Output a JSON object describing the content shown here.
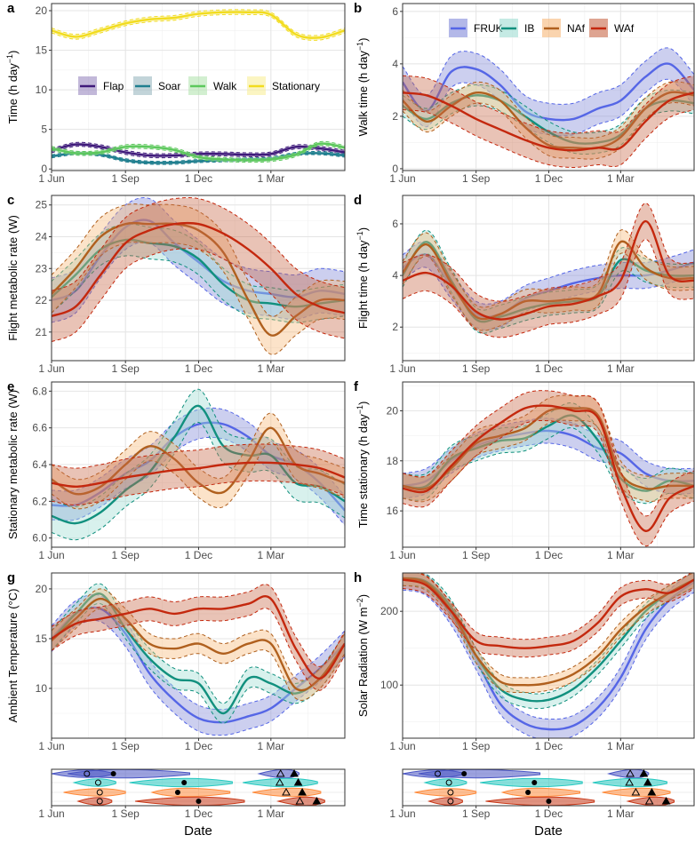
{
  "x_ticks": {
    "labels": [
      "1 Jun",
      "1 Sep",
      "1 Dec",
      "1 Mar"
    ],
    "days": [
      0,
      92,
      183,
      273
    ]
  },
  "x_axis_title": "Date",
  "population_legend": [
    {
      "name": "FRUK",
      "line": "#5566e6",
      "band": "#8088d8"
    },
    {
      "name": "IB",
      "line": "#11907e",
      "band": "#9edcd2"
    },
    {
      "name": "NAf",
      "line": "#b0601e",
      "band": "#f7b878"
    },
    {
      "name": "WAf",
      "line": "#c4280e",
      "band": "#c86848"
    }
  ],
  "chart_data": [
    {
      "panel": "a",
      "type": "line",
      "ylabel": "Time (h day",
      "ylabel_sup": "−1",
      "ylabel_end": ")",
      "ylim": [
        -0.2,
        20.9
      ],
      "yticks": [
        0,
        5,
        10,
        15,
        20
      ],
      "legend": "center",
      "x_days": [
        0,
        30,
        61,
        92,
        122,
        153,
        183,
        214,
        245,
        273,
        304,
        334,
        365
      ],
      "series": [
        {
          "name": "Flap",
          "line": "#3f1a7a",
          "band": "#9a88c0",
          "halfwidth": 0.25,
          "values": [
            2.3,
            3.1,
            2.8,
            2.1,
            1.7,
            1.7,
            1.9,
            1.9,
            1.8,
            1.9,
            2.8,
            2.6,
            2.1
          ]
        },
        {
          "name": "Soar",
          "line": "#1f7f8f",
          "band": "#9ab8c0",
          "halfwidth": 0.2,
          "values": [
            1.6,
            2.0,
            1.8,
            1.1,
            0.8,
            0.8,
            1.0,
            1.1,
            1.2,
            1.3,
            1.9,
            2.0,
            1.7
          ]
        },
        {
          "name": "Walk",
          "line": "#5cc85c",
          "band": "#b4e4b0",
          "halfwidth": 0.25,
          "values": [
            2.6,
            2.0,
            2.1,
            2.8,
            2.8,
            2.4,
            1.5,
            1.2,
            1.1,
            1.2,
            1.8,
            3.2,
            2.7
          ]
        },
        {
          "name": "Stationary",
          "line": "#f2dc1e",
          "band": "#f8ee9a",
          "halfwidth": 0.3,
          "values": [
            17.5,
            16.7,
            17.5,
            18.4,
            18.9,
            19.1,
            19.6,
            19.8,
            19.8,
            19.5,
            17.0,
            16.6,
            17.5
          ]
        }
      ]
    },
    {
      "panel": "b",
      "type": "line",
      "ylabel": "Walk time (h day",
      "ylabel_sup": "−1",
      "ylabel_end": ")",
      "ylim": [
        -0.07,
        6.3
      ],
      "yticks": [
        0,
        2,
        4,
        6
      ],
      "legend": "top",
      "x_days": [
        0,
        30,
        61,
        92,
        122,
        153,
        183,
        214,
        245,
        273,
        304,
        334,
        365
      ],
      "series": [
        {
          "name": "FRUK",
          "halfwidth": 0.6,
          "values": [
            3.3,
            2.2,
            3.7,
            3.8,
            3.2,
            2.2,
            1.9,
            1.9,
            2.3,
            2.6,
            3.5,
            4.0,
            3.0
          ]
        },
        {
          "name": "IB",
          "halfwidth": 0.4,
          "values": [
            2.4,
            1.9,
            2.5,
            2.8,
            2.6,
            2.0,
            1.4,
            1.0,
            1.0,
            1.3,
            2.3,
            2.6,
            2.5
          ]
        },
        {
          "name": "NAf",
          "halfwidth": 0.4,
          "values": [
            2.6,
            1.8,
            2.4,
            2.9,
            2.6,
            1.6,
            0.9,
            0.8,
            0.8,
            1.2,
            2.3,
            2.9,
            2.8
          ]
        },
        {
          "name": "WAf",
          "halfwidth": 0.65,
          "values": [
            2.9,
            2.8,
            2.4,
            1.9,
            1.5,
            1.1,
            0.8,
            0.7,
            0.8,
            0.8,
            1.8,
            2.6,
            2.9
          ]
        }
      ]
    },
    {
      "panel": "c",
      "type": "line",
      "ylabel": "Flight metabolic rate (W)",
      "ylim": [
        20.1,
        25.3
      ],
      "yticks": [
        21,
        22,
        23,
        24,
        25
      ],
      "x_days": [
        0,
        30,
        61,
        92,
        122,
        153,
        183,
        214,
        245,
        273,
        304,
        334,
        365
      ],
      "series": [
        {
          "name": "FRUK",
          "halfwidth": 0.7,
          "values": [
            22.0,
            22.3,
            23.4,
            24.3,
            24.5,
            23.8,
            23.2,
            22.6,
            22.3,
            22.2,
            22.1,
            22.3,
            22.2
          ]
        },
        {
          "name": "IB",
          "halfwidth": 0.5,
          "values": [
            22.1,
            22.8,
            23.6,
            23.9,
            23.8,
            23.7,
            23.3,
            22.5,
            22.0,
            21.9,
            21.8,
            21.9,
            22.0
          ]
        },
        {
          "name": "NAf",
          "halfwidth": 0.6,
          "values": [
            22.2,
            23.0,
            24.0,
            24.4,
            24.4,
            24.4,
            24.2,
            23.5,
            22.0,
            20.9,
            21.5,
            22.0,
            22.0
          ]
        },
        {
          "name": "WAf",
          "halfwidth": 0.8,
          "values": [
            21.5,
            21.8,
            22.8,
            23.8,
            24.2,
            24.4,
            24.4,
            24.1,
            23.6,
            23.0,
            22.2,
            21.8,
            21.6
          ]
        }
      ]
    },
    {
      "panel": "d",
      "type": "line",
      "ylabel": "Flight time (h day",
      "ylabel_sup": "−1",
      "ylabel_end": ")",
      "ylim": [
        0.7,
        7.1
      ],
      "yticks": [
        2,
        4,
        6
      ],
      "x_days": [
        0,
        30,
        61,
        92,
        122,
        153,
        183,
        214,
        245,
        273,
        304,
        334,
        365
      ],
      "series": [
        {
          "name": "FRUK",
          "halfwidth": 0.5,
          "values": [
            4.3,
            4.8,
            3.6,
            2.5,
            2.5,
            3.1,
            3.4,
            3.7,
            3.9,
            4.0,
            4.0,
            4.2,
            4.5
          ]
        },
        {
          "name": "IB",
          "halfwidth": 0.45,
          "values": [
            4.0,
            5.3,
            3.8,
            2.3,
            2.4,
            2.7,
            2.9,
            3.0,
            3.2,
            4.6,
            4.2,
            4.0,
            4.0
          ]
        },
        {
          "name": "NAf",
          "halfwidth": 0.45,
          "values": [
            4.1,
            5.2,
            3.7,
            2.4,
            2.5,
            3.0,
            3.0,
            3.1,
            3.3,
            5.3,
            4.3,
            3.9,
            3.9
          ]
        },
        {
          "name": "WAf",
          "halfwidth": 0.7,
          "values": [
            3.8,
            4.1,
            3.6,
            2.6,
            2.3,
            2.5,
            2.8,
            2.9,
            3.2,
            3.8,
            6.1,
            4.0,
            3.8
          ]
        }
      ]
    },
    {
      "panel": "e",
      "type": "line",
      "ylabel": "Stationary metabolic rate (W)",
      "ylim": [
        5.95,
        6.85
      ],
      "yticks": [
        6.0,
        6.2,
        6.4,
        6.6,
        6.8
      ],
      "ytick_labels": [
        "6.0",
        "6.2",
        "6.4",
        "6.6",
        "6.8"
      ],
      "x_days": [
        0,
        30,
        61,
        92,
        122,
        153,
        183,
        214,
        245,
        273,
        304,
        334,
        365
      ],
      "series": [
        {
          "name": "FRUK",
          "halfwidth": 0.08,
          "values": [
            6.18,
            6.18,
            6.25,
            6.35,
            6.42,
            6.55,
            6.62,
            6.62,
            6.55,
            6.45,
            6.4,
            6.3,
            6.15
          ]
        },
        {
          "name": "IB",
          "halfwidth": 0.09,
          "values": [
            6.12,
            6.08,
            6.14,
            6.26,
            6.36,
            6.55,
            6.72,
            6.5,
            6.45,
            6.45,
            6.3,
            6.28,
            6.2
          ]
        },
        {
          "name": "NAf",
          "halfwidth": 0.08,
          "values": [
            6.32,
            6.24,
            6.28,
            6.4,
            6.5,
            6.43,
            6.3,
            6.25,
            6.42,
            6.6,
            6.4,
            6.35,
            6.3
          ]
        },
        {
          "name": "WAf",
          "halfwidth": 0.1,
          "values": [
            6.3,
            6.28,
            6.3,
            6.33,
            6.35,
            6.37,
            6.38,
            6.4,
            6.41,
            6.41,
            6.4,
            6.38,
            6.33
          ]
        }
      ]
    },
    {
      "panel": "f",
      "type": "line",
      "ylabel": "Time stationary (h day",
      "ylabel_sup": "−1",
      "ylabel_end": ")",
      "ylim": [
        14.55,
        21.15
      ],
      "yticks": [
        16,
        18,
        20
      ],
      "x_days": [
        0,
        30,
        61,
        92,
        122,
        153,
        183,
        214,
        245,
        273,
        304,
        334,
        365
      ],
      "series": [
        {
          "name": "FRUK",
          "halfwidth": 0.5,
          "values": [
            17.0,
            17.2,
            18.0,
            18.6,
            18.9,
            19.1,
            19.2,
            19.0,
            18.5,
            18.3,
            17.5,
            17.2,
            17.2
          ]
        },
        {
          "name": "IB",
          "halfwidth": 0.5,
          "values": [
            17.0,
            17.0,
            18.1,
            18.5,
            18.8,
            18.9,
            19.4,
            19.8,
            18.8,
            17.3,
            16.8,
            17.2,
            17.0
          ]
        },
        {
          "name": "NAf",
          "halfwidth": 0.5,
          "values": [
            17.0,
            16.9,
            17.7,
            18.7,
            19.0,
            19.3,
            20.0,
            20.1,
            19.8,
            17.5,
            16.9,
            17.0,
            17.0
          ]
        },
        {
          "name": "WAf",
          "halfwidth": 0.6,
          "values": [
            16.9,
            16.8,
            17.8,
            18.8,
            19.5,
            20.1,
            20.2,
            20.0,
            19.7,
            17.0,
            15.2,
            16.5,
            17.0
          ]
        }
      ]
    },
    {
      "panel": "g",
      "type": "line",
      "ylabel": "Ambient Temperature (°C)",
      "ylim": [
        5.0,
        21.6
      ],
      "yticks": [
        10,
        15,
        20
      ],
      "x_days": [
        0,
        30,
        61,
        92,
        122,
        153,
        183,
        214,
        245,
        273,
        304,
        334,
        365
      ],
      "series": [
        {
          "name": "FRUK",
          "halfwidth": 1.3,
          "values": [
            15.0,
            17.5,
            18.0,
            15.5,
            11.5,
            8.8,
            7.0,
            6.6,
            7.2,
            8.0,
            10.0,
            12.0,
            14.5
          ]
        },
        {
          "name": "IB",
          "halfwidth": 1.0,
          "values": [
            14.8,
            17.5,
            19.5,
            16.0,
            13.0,
            11.0,
            10.5,
            7.5,
            11.0,
            10.5,
            9.5,
            11.0,
            14.5
          ]
        },
        {
          "name": "NAf",
          "halfwidth": 1.0,
          "values": [
            14.8,
            17.0,
            19.0,
            17.0,
            14.5,
            14.0,
            14.5,
            13.5,
            14.5,
            14.5,
            10.0,
            11.0,
            14.5
          ]
        },
        {
          "name": "WAf",
          "halfwidth": 1.2,
          "values": [
            15.0,
            16.5,
            17.0,
            17.5,
            18.0,
            17.5,
            18.0,
            18.0,
            18.5,
            19.0,
            14.0,
            11.0,
            14.5
          ]
        }
      ]
    },
    {
      "panel": "h",
      "type": "line",
      "ylabel": "Solar Radiation (W m",
      "ylabel_sup": "−2",
      "ylabel_end": ")",
      "ylim": [
        28,
        252
      ],
      "yticks": [
        100,
        200
      ],
      "x_days": [
        0,
        30,
        61,
        92,
        122,
        153,
        183,
        214,
        245,
        273,
        304,
        334,
        365
      ],
      "series": [
        {
          "name": "FRUK",
          "halfwidth": 14,
          "values": [
            243,
            235,
            195,
            135,
            75,
            48,
            40,
            45,
            70,
            110,
            175,
            215,
            240
          ]
        },
        {
          "name": "IB",
          "halfwidth": 10,
          "values": [
            245,
            240,
            205,
            140,
            95,
            80,
            80,
            95,
            125,
            160,
            200,
            225,
            243
          ]
        },
        {
          "name": "NAf",
          "halfwidth": 10,
          "values": [
            245,
            238,
            200,
            140,
            105,
            100,
            103,
            115,
            140,
            175,
            205,
            225,
            243
          ]
        },
        {
          "name": "WAf",
          "halfwidth": 12,
          "values": [
            243,
            235,
            200,
            160,
            153,
            150,
            153,
            160,
            185,
            220,
            230,
            225,
            243
          ]
        }
      ]
    }
  ],
  "migration_timing": {
    "type": "violin",
    "note": "days since 1 Jun; open circle = autumn departure, filled circle = autumn arrival, open triangle = spring departure, filled triangle = spring arrival",
    "rows": [
      {
        "name": "FRUK",
        "fill": "#4a56c4",
        "autumn_depart": {
          "range": [
            0,
            75
          ],
          "median": 44
        },
        "autumn_arrive": {
          "range": [
            20,
            172
          ],
          "median": 77
        },
        "spring": {
          "range": [
            258,
            308
          ],
          "open": 285,
          "filled": 302
        }
      },
      {
        "name": "IB",
        "fill": "#26c8c0",
        "autumn_depart": {
          "range": [
            28,
            80
          ],
          "median": 58
        },
        "autumn_arrive": {
          "range": [
            97,
            225
          ],
          "median": 165
        },
        "spring": {
          "range": [
            238,
            331
          ],
          "open": 284,
          "filled": 307
        }
      },
      {
        "name": "NAf",
        "fill": "#ff8a3a",
        "autumn_depart": {
          "range": [
            15,
            92
          ],
          "median": 60
        },
        "autumn_arrive": {
          "range": [
            125,
            222
          ],
          "median": 157
        },
        "spring": {
          "range": [
            250,
            335
          ],
          "open": 292,
          "filled": 312
        }
      },
      {
        "name": "WAf",
        "fill": "#c83818",
        "autumn_depart": {
          "range": [
            33,
            75
          ],
          "median": 60
        },
        "autumn_arrive": {
          "range": [
            104,
            240
          ],
          "median": 183
        },
        "spring": {
          "range": [
            282,
            340
          ],
          "open": 309,
          "filled": 330
        }
      }
    ]
  }
}
